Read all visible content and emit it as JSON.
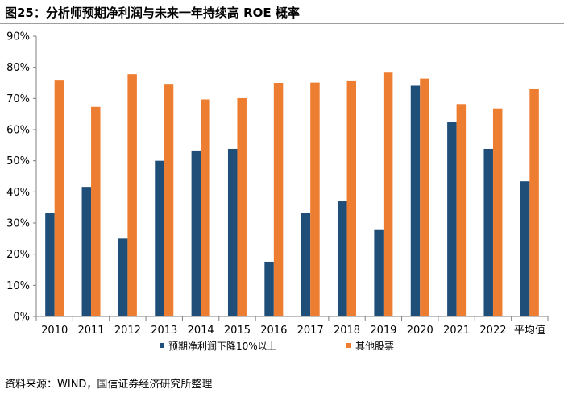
{
  "figure": {
    "title": "图25：分析师预期净利润与未来一年持续高 ROE 概率",
    "source": "资料来源：WIND，国信证券经济研究所整理"
  },
  "colors": {
    "series1": "#1f4e79",
    "series2": "#ed7d31",
    "axis": "#7f7f7f",
    "rule": "#9e9e9e"
  },
  "chart_data": {
    "type": "bar",
    "title": "分析师预期净利润与未来一年持续高 ROE 概率",
    "xlabel": "",
    "ylabel": "",
    "ylim": [
      0,
      90
    ],
    "y_step": 10,
    "y_tick_labels": [
      "0%",
      "10%",
      "20%",
      "30%",
      "40%",
      "50%",
      "60%",
      "70%",
      "80%",
      "90%"
    ],
    "grid": false,
    "legend_position": "bottom",
    "categories": [
      "2010",
      "2011",
      "2012",
      "2013",
      "2014",
      "2015",
      "2016",
      "2017",
      "2018",
      "2019",
      "2020",
      "2021",
      "2022",
      "平均值"
    ],
    "series": [
      {
        "name": "预期净利润下降10%以上",
        "color": "#1f4e79",
        "values": [
          33.3,
          41.6,
          25.0,
          50.0,
          53.3,
          53.8,
          17.6,
          33.3,
          37.0,
          28.0,
          74.1,
          62.5,
          53.8,
          43.4
        ]
      },
      {
        "name": "其他股票",
        "color": "#ed7d31",
        "values": [
          76.0,
          67.3,
          77.8,
          74.7,
          69.7,
          70.1,
          75.0,
          75.1,
          75.8,
          78.3,
          76.4,
          68.2,
          66.8,
          73.2
        ]
      }
    ]
  }
}
